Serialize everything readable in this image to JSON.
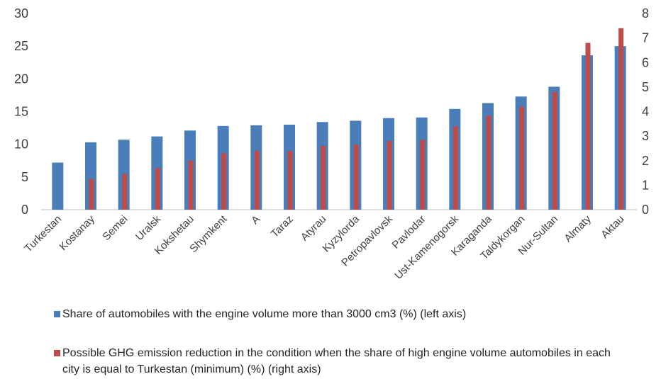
{
  "chart_data": {
    "type": "bar",
    "categories": [
      "Turkestan",
      "Kostanay",
      "Semei",
      "Uralsk",
      "Kokshetau",
      "Shymkent",
      "A",
      "Taraz",
      "Atyrau",
      "Kyzylorda",
      "Petropavlovsk",
      "Pavlodar",
      "Ust-Kamenogorsk",
      "Karaganda",
      "Taldykorgan",
      "Nur-Sultan",
      "Almaty",
      "Aktau"
    ],
    "series": [
      {
        "name": "Share of automobiles with the engine volume more than 3000 cm3 (%) (left axis)",
        "axis": "left",
        "color": "#4a7ebb",
        "values": [
          7.2,
          10.3,
          10.7,
          11.2,
          12.1,
          12.8,
          12.9,
          13.0,
          13.4,
          13.6,
          14.0,
          14.1,
          15.4,
          16.3,
          17.3,
          18.8,
          23.6,
          25.0
        ]
      },
      {
        "name": "Possible GHG emission reduction in the condition when the share of high engine volume automobiles in each city is equal to Turkestan (minimum) (%) (right axis)",
        "axis": "right",
        "color": "#be4b48",
        "values": [
          0,
          1.25,
          1.45,
          1.7,
          2.0,
          2.3,
          2.4,
          2.4,
          2.6,
          2.65,
          2.8,
          2.85,
          3.4,
          3.85,
          4.2,
          4.8,
          6.8,
          7.4
        ]
      }
    ],
    "left_axis": {
      "min": 0,
      "max": 30,
      "ticks": [
        "0",
        "5",
        "10",
        "15",
        "20",
        "25",
        "30"
      ]
    },
    "right_axis": {
      "min": 0,
      "max": 8,
      "ticks": [
        "0",
        "1",
        "2",
        "3",
        "4",
        "5",
        "6",
        "7",
        "8"
      ]
    },
    "grid": false,
    "legend_position": "bottom"
  }
}
